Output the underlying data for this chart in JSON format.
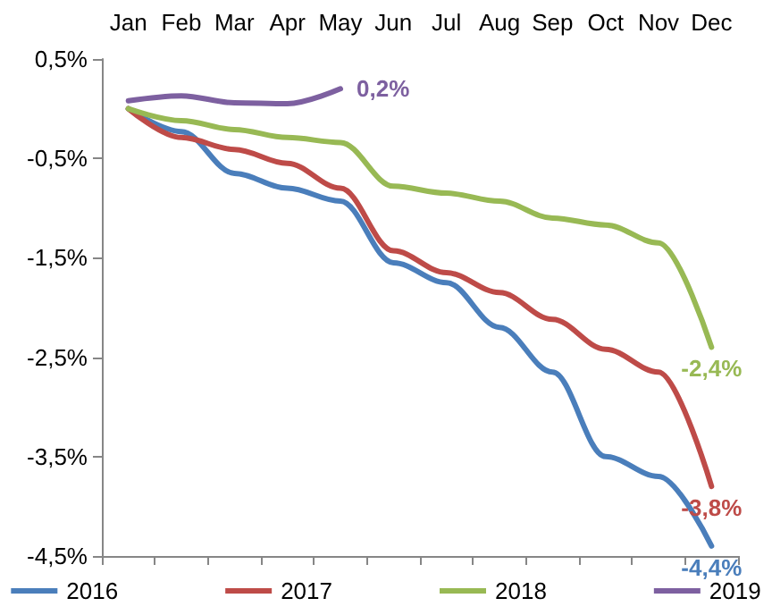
{
  "chart_data": {
    "type": "line",
    "categories": [
      "Jan",
      "Feb",
      "Mar",
      "Apr",
      "May",
      "Jun",
      "Jul",
      "Aug",
      "Sep",
      "Oct",
      "Nov",
      "Dec"
    ],
    "series": [
      {
        "name": "2016",
        "color": "#4a7ebb",
        "values": [
          0,
          -0.23,
          -0.65,
          -0.8,
          -0.93,
          -1.55,
          -1.75,
          -2.2,
          -2.65,
          -3.5,
          -3.7,
          -4.4
        ],
        "value_labels": [
          null,
          null,
          null,
          null,
          null,
          null,
          null,
          null,
          null,
          null,
          null,
          "-4,4%"
        ]
      },
      {
        "name": "2017",
        "color": "#be4b48",
        "values": [
          0,
          -0.29,
          -0.41,
          -0.55,
          -0.8,
          -1.43,
          -1.65,
          -1.85,
          -2.12,
          -2.42,
          -2.65,
          -3.8
        ],
        "value_labels": [
          null,
          null,
          null,
          null,
          null,
          null,
          null,
          null,
          null,
          null,
          null,
          "-3,8%"
        ]
      },
      {
        "name": "2018",
        "color": "#98b954",
        "values": [
          0,
          -0.12,
          -0.21,
          -0.29,
          -0.34,
          -0.78,
          -0.85,
          -0.93,
          -1.1,
          -1.17,
          -1.35,
          -2.4
        ],
        "value_labels": [
          null,
          null,
          null,
          null,
          null,
          null,
          null,
          null,
          null,
          null,
          null,
          "-2,4%"
        ]
      },
      {
        "name": "2019",
        "color": "#7d60a0",
        "values": [
          0.08,
          0.13,
          0.06,
          0.05,
          0.2,
          null,
          null,
          null,
          null,
          null,
          null,
          null
        ],
        "value_labels": [
          null,
          null,
          null,
          null,
          "0,2%",
          null,
          null,
          null,
          null,
          null,
          null,
          null
        ]
      }
    ],
    "ylim": [
      -4.5,
      0.5
    ],
    "yticks": [
      {
        "value": 0.5,
        "label": "0,5%"
      },
      {
        "value": -0.5,
        "label": "-0,5%"
      },
      {
        "value": -1.5,
        "label": "-1,5%"
      },
      {
        "value": -2.5,
        "label": "-2,5%"
      },
      {
        "value": -3.5,
        "label": "-3,5%"
      },
      {
        "value": -4.5,
        "label": "-4,5%"
      }
    ],
    "legend": "bottom",
    "grid": false,
    "marker": "none",
    "line_style": "solid"
  }
}
